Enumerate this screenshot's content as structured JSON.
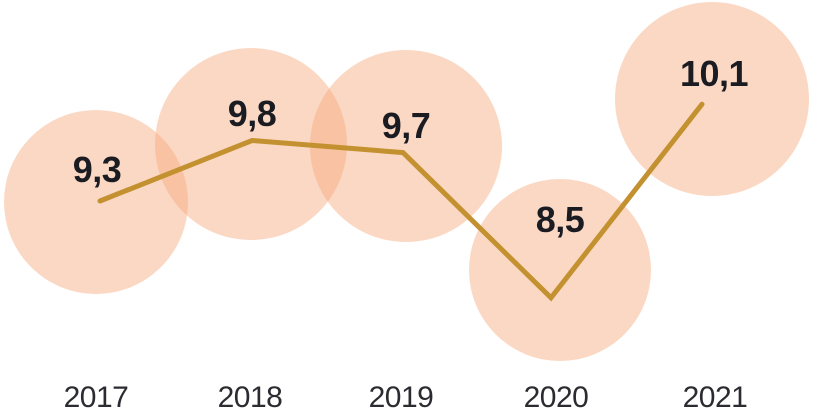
{
  "chart_data": {
    "type": "line",
    "title": "",
    "categories": [
      "2017",
      "2018",
      "2019",
      "2020",
      "2021"
    ],
    "values": [
      9.3,
      9.8,
      9.7,
      8.5,
      10.1
    ],
    "display_values": [
      "9,3",
      "9,8",
      "9,7",
      "8,5",
      "10,1"
    ],
    "decimal_separator": ",",
    "xlabel": "",
    "ylabel": "",
    "legend": "none",
    "grid": false,
    "axes_visible": false,
    "marker_style": "large-translucent-bubble",
    "colors": {
      "line": "#c3912f",
      "bubble_fill": "#f6a87c",
      "bubble_opacity": "0.45",
      "value_label": "#1b1b22",
      "year_label": "#2b2b31",
      "background": "#ffffff"
    }
  }
}
